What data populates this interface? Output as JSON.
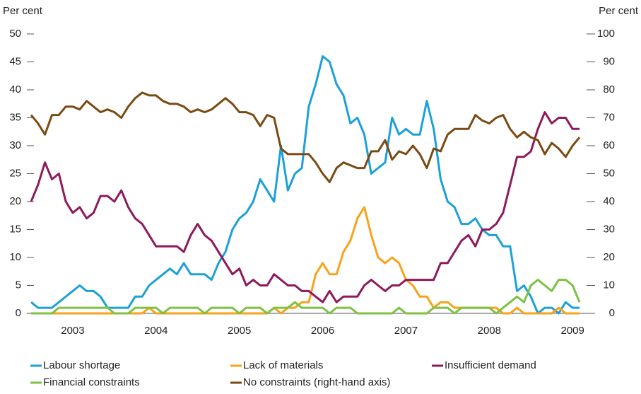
{
  "chart_data": {
    "type": "line",
    "y_label": "Per cent",
    "y2_label": "Per cent",
    "categories": [
      null,
      null,
      null,
      null,
      null,
      null,
      "2003",
      null,
      null,
      null,
      null,
      null,
      null,
      null,
      null,
      null,
      null,
      null,
      "2004",
      null,
      null,
      null,
      null,
      null,
      null,
      null,
      null,
      null,
      null,
      null,
      "2005",
      null,
      null,
      null,
      null,
      null,
      null,
      null,
      null,
      null,
      null,
      null,
      "2006",
      null,
      null,
      null,
      null,
      null,
      null,
      null,
      null,
      null,
      null,
      null,
      "2007",
      null,
      null,
      null,
      null,
      null,
      null,
      null,
      null,
      null,
      null,
      null,
      "2008",
      null,
      null,
      null,
      null,
      null,
      null,
      null,
      null,
      null,
      null,
      null,
      "2009",
      null
    ],
    "ylim": [
      0,
      50
    ],
    "yticks": [
      0,
      5,
      10,
      15,
      20,
      25,
      30,
      35,
      40,
      45,
      50
    ],
    "y2lim": [
      0,
      100
    ],
    "y2ticks": [
      0,
      10,
      20,
      30,
      40,
      50,
      60,
      70,
      80,
      90,
      100
    ],
    "series": [
      {
        "name": "Labour shortage",
        "color": "#1ba1d8",
        "values": [
          2,
          1,
          1,
          1,
          2,
          3,
          4,
          5,
          4,
          4,
          3,
          1,
          1,
          1,
          1,
          3,
          3,
          5,
          6,
          7,
          8,
          7,
          9,
          7,
          7,
          7,
          6,
          9,
          11,
          15,
          17,
          18,
          20,
          24,
          22,
          20,
          30,
          22,
          25,
          26,
          37,
          41,
          46,
          45,
          41,
          39,
          34,
          35,
          32,
          25,
          26,
          27,
          35,
          32,
          33,
          32,
          32,
          38,
          33,
          24,
          20,
          19,
          16,
          16,
          17,
          15,
          14,
          14,
          12,
          12,
          4,
          5,
          3,
          0,
          1,
          1,
          0,
          2,
          1,
          1
        ]
      },
      {
        "name": "Lack of materials",
        "color": "#f7a21b",
        "values": [
          0,
          0,
          0,
          0,
          0,
          0,
          0,
          0,
          0,
          0,
          0,
          0,
          0,
          0,
          0,
          0,
          0,
          1,
          0,
          0,
          0,
          0,
          0,
          0,
          0,
          0,
          0,
          0,
          0,
          0,
          0,
          0,
          0,
          0,
          0,
          1,
          0,
          1,
          1,
          2,
          2,
          7,
          9,
          7,
          7,
          11,
          13,
          17,
          19,
          14,
          10,
          9,
          10,
          9,
          6,
          5,
          3,
          3,
          1,
          2,
          2,
          1,
          1,
          1,
          1,
          1,
          1,
          1,
          0,
          0,
          1,
          0,
          0,
          0,
          0,
          0,
          1,
          0,
          0,
          0
        ]
      },
      {
        "name": "Insufficient demand",
        "color": "#8e1a5c",
        "values": [
          20,
          23,
          27,
          24,
          25,
          20,
          18,
          19,
          17,
          18,
          21,
          21,
          20,
          22,
          19,
          17,
          16,
          14,
          12,
          12,
          12,
          12,
          11,
          14,
          16,
          14,
          13,
          11,
          9,
          7,
          8,
          5,
          6,
          5,
          5,
          7,
          6,
          5,
          5,
          4,
          4,
          3,
          2,
          4,
          2,
          3,
          3,
          3,
          5,
          6,
          5,
          4,
          5,
          5,
          6,
          6,
          6,
          6,
          6,
          9,
          9,
          11,
          13,
          14,
          12,
          15,
          15,
          16,
          18,
          23,
          28,
          28,
          29,
          33,
          36,
          34,
          35,
          35,
          33,
          33
        ]
      },
      {
        "name": "Financial constraints",
        "color": "#7dc242",
        "values": [
          0,
          0,
          0,
          0,
          1,
          1,
          1,
          1,
          1,
          1,
          1,
          1,
          0,
          0,
          0,
          1,
          1,
          1,
          1,
          0,
          1,
          1,
          1,
          1,
          1,
          0,
          1,
          1,
          1,
          1,
          0,
          1,
          1,
          1,
          0,
          1,
          1,
          1,
          2,
          1,
          1,
          1,
          1,
          0,
          1,
          1,
          1,
          0,
          0,
          0,
          0,
          0,
          0,
          1,
          0,
          0,
          0,
          0,
          1,
          1,
          1,
          0,
          1,
          1,
          1,
          1,
          1,
          0,
          1,
          2,
          3,
          2,
          5,
          6,
          5,
          4,
          6,
          6,
          5,
          2
        ]
      },
      {
        "name": "No constraints (right-hand axis)",
        "color": "#7a4a12",
        "axis": "y2",
        "values": [
          71,
          68,
          64,
          71,
          71,
          74,
          74,
          73,
          76,
          74,
          72,
          73,
          72,
          70,
          74,
          77,
          79,
          78,
          78,
          76,
          75,
          75,
          74,
          72,
          73,
          72,
          73,
          75,
          77,
          75,
          72,
          72,
          71,
          67,
          71,
          70,
          59,
          57,
          57,
          57,
          57,
          54,
          50,
          47,
          52,
          54,
          53,
          52,
          52,
          58,
          58,
          62,
          55,
          58,
          57,
          60,
          57,
          52,
          59,
          58,
          64,
          66,
          66,
          66,
          71,
          69,
          68,
          70,
          71,
          66,
          63,
          65,
          63,
          62,
          57,
          61,
          59,
          56,
          60,
          63
        ]
      }
    ]
  }
}
